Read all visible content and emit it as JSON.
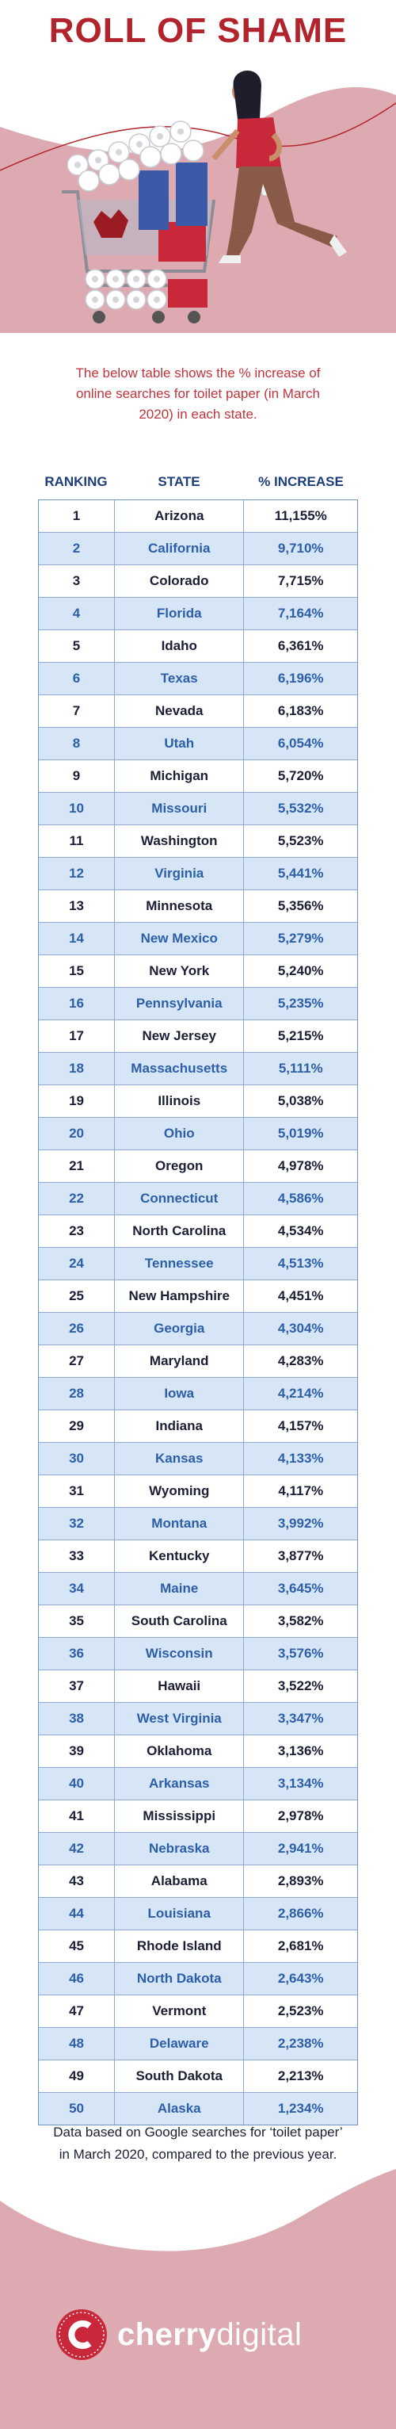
{
  "header": {
    "title": "ROLL OF SHAME"
  },
  "intro": "The below table shows the % increase of online searches for toilet paper (in March 2020) in each state.",
  "table": {
    "headers": {
      "rank": "RANKING",
      "state": "STATE",
      "increase": "% INCREASE"
    },
    "rows": [
      {
        "rank": "1",
        "state": "Arizona",
        "increase": "11,155%"
      },
      {
        "rank": "2",
        "state": "California",
        "increase": "9,710%"
      },
      {
        "rank": "3",
        "state": "Colorado",
        "increase": "7,715%"
      },
      {
        "rank": "4",
        "state": "Florida",
        "increase": "7,164%"
      },
      {
        "rank": "5",
        "state": "Idaho",
        "increase": "6,361%"
      },
      {
        "rank": "6",
        "state": "Texas",
        "increase": "6,196%"
      },
      {
        "rank": "7",
        "state": "Nevada",
        "increase": "6,183%"
      },
      {
        "rank": "8",
        "state": "Utah",
        "increase": "6,054%"
      },
      {
        "rank": "9",
        "state": "Michigan",
        "increase": "5,720%"
      },
      {
        "rank": "10",
        "state": "Missouri",
        "increase": "5,532%"
      },
      {
        "rank": "11",
        "state": "Washington",
        "increase": "5,523%"
      },
      {
        "rank": "12",
        "state": "Virginia",
        "increase": "5,441%"
      },
      {
        "rank": "13",
        "state": "Minnesota",
        "increase": "5,356%"
      },
      {
        "rank": "14",
        "state": "New Mexico",
        "increase": "5,279%"
      },
      {
        "rank": "15",
        "state": "New York",
        "increase": "5,240%"
      },
      {
        "rank": "16",
        "state": "Pennsylvania",
        "increase": "5,235%"
      },
      {
        "rank": "17",
        "state": "New Jersey",
        "increase": "5,215%"
      },
      {
        "rank": "18",
        "state": "Massachusetts",
        "increase": "5,111%"
      },
      {
        "rank": "19",
        "state": "Illinois",
        "increase": "5,038%"
      },
      {
        "rank": "20",
        "state": "Ohio",
        "increase": "5,019%"
      },
      {
        "rank": "21",
        "state": "Oregon",
        "increase": "4,978%"
      },
      {
        "rank": "22",
        "state": "Connecticut",
        "increase": "4,586%"
      },
      {
        "rank": "23",
        "state": "North Carolina",
        "increase": "4,534%"
      },
      {
        "rank": "24",
        "state": "Tennessee",
        "increase": "4,513%"
      },
      {
        "rank": "25",
        "state": "New Hampshire",
        "increase": "4,451%"
      },
      {
        "rank": "26",
        "state": "Georgia",
        "increase": "4,304%"
      },
      {
        "rank": "27",
        "state": "Maryland",
        "increase": "4,283%"
      },
      {
        "rank": "28",
        "state": "Iowa",
        "increase": "4,214%"
      },
      {
        "rank": "29",
        "state": "Indiana",
        "increase": "4,157%"
      },
      {
        "rank": "30",
        "state": "Kansas",
        "increase": "4,133%"
      },
      {
        "rank": "31",
        "state": "Wyoming",
        "increase": "4,117%"
      },
      {
        "rank": "32",
        "state": "Montana",
        "increase": "3,992%"
      },
      {
        "rank": "33",
        "state": "Kentucky",
        "increase": "3,877%"
      },
      {
        "rank": "34",
        "state": "Maine",
        "increase": "3,645%"
      },
      {
        "rank": "35",
        "state": "South Carolina",
        "increase": "3,582%"
      },
      {
        "rank": "36",
        "state": "Wisconsin",
        "increase": "3,576%"
      },
      {
        "rank": "37",
        "state": "Hawaii",
        "increase": "3,522%"
      },
      {
        "rank": "38",
        "state": "West Virginia",
        "increase": "3,347%"
      },
      {
        "rank": "39",
        "state": "Oklahoma",
        "increase": "3,136%"
      },
      {
        "rank": "40",
        "state": "Arkansas",
        "increase": "3,134%"
      },
      {
        "rank": "41",
        "state": "Mississippi",
        "increase": "2,978%"
      },
      {
        "rank": "42",
        "state": "Nebraska",
        "increase": "2,941%"
      },
      {
        "rank": "43",
        "state": "Alabama",
        "increase": "2,893%"
      },
      {
        "rank": "44",
        "state": "Louisiana",
        "increase": "2,866%"
      },
      {
        "rank": "45",
        "state": "Rhode Island",
        "increase": "2,681%"
      },
      {
        "rank": "46",
        "state": "North Dakota",
        "increase": "2,643%"
      },
      {
        "rank": "47",
        "state": "Vermont",
        "increase": "2,523%"
      },
      {
        "rank": "48",
        "state": "Delaware",
        "increase": "2,238%"
      },
      {
        "rank": "49",
        "state": "South Dakota",
        "increase": "2,213%"
      },
      {
        "rank": "50",
        "state": "Alaska",
        "increase": "1,234%"
      }
    ]
  },
  "footnote": "Data based on Google searches for ‘toilet paper’ in March 2020, compared to the previous year.",
  "footer": {
    "brand_bold": "cherry",
    "brand_light": "digital"
  },
  "colors": {
    "title": "#b1242c",
    "header_blue": "#1e3e7a",
    "row_alt": "#d6e6f7",
    "pink": "#dcaab0",
    "cherry_red": "#c8283a"
  },
  "icons": [
    "toilet-roll-icon",
    "shopping-cart-icon",
    "cherry-logo-icon"
  ]
}
